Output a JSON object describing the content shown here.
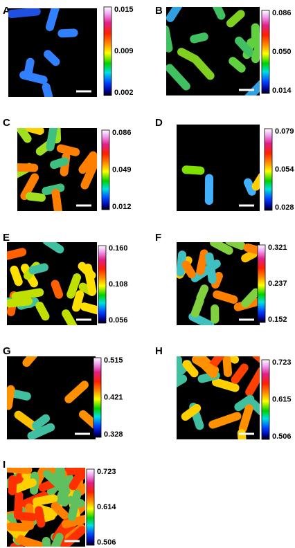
{
  "panels": [
    {
      "label": "A",
      "ticks": [
        "0.015",
        "0.009",
        "0.002"
      ]
    },
    {
      "label": "B",
      "ticks": [
        "0.086",
        "0.050",
        "0.014"
      ]
    },
    {
      "label": "C",
      "ticks": [
        "0.086",
        "0.049",
        "0.012"
      ]
    },
    {
      "label": "D",
      "ticks": [
        "0.079",
        "0.054",
        "0.028"
      ]
    },
    {
      "label": "E",
      "ticks": [
        "0.160",
        "0.108",
        "0.056"
      ]
    },
    {
      "label": "F",
      "ticks": [
        "0.321",
        "0.237",
        "0.152"
      ]
    },
    {
      "label": "G",
      "ticks": [
        "0.515",
        "0.421",
        "0.328"
      ]
    },
    {
      "label": "H",
      "ticks": [
        "0.723",
        "0.615",
        "0.506"
      ]
    },
    {
      "label": "I",
      "ticks": [
        "0.723",
        "0.614",
        "0.506"
      ]
    }
  ]
}
